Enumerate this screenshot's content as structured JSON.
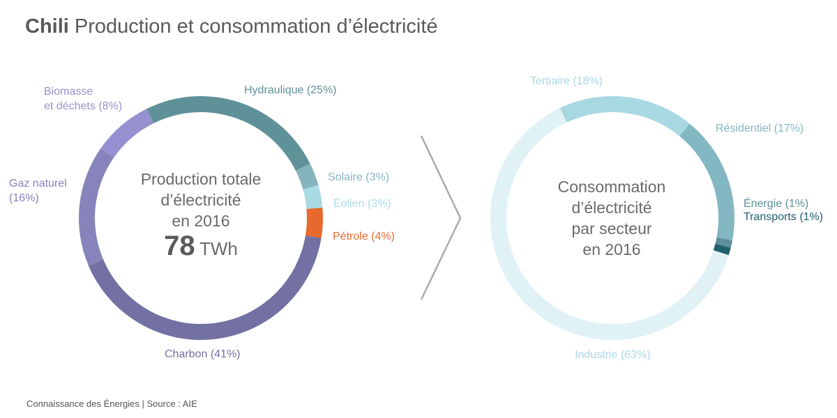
{
  "title": {
    "country": "Chili",
    "subtitle": "Production et consommation d’électricité"
  },
  "footer": "Connaissance des Énergies | Source : AIE",
  "center_production": {
    "l1": "Production totale",
    "l2": "d’électricité",
    "l3": "en 2016",
    "value": "78",
    "unit": "TWh"
  },
  "center_consumption": {
    "l1": "Consommation",
    "l2": "d’électricité",
    "l3": "par secteur",
    "l4": "en 2016"
  },
  "labels": {
    "hydro": "Hydraulique (25%)",
    "solaire": "Solaire (3%)",
    "eolien": "Éolien (3%)",
    "petrole": "Pétrole (4%)",
    "charbon": "Charbon (41%)",
    "gaz_1": "Gaz naturel",
    "gaz_2": "(16%)",
    "bio_1": "Biomasse",
    "bio_2": "et déchets (8%)",
    "tertiaire": "Tertiaire (18%)",
    "residentiel": "Résidentiel (17%)",
    "energie": "Énergie (1%)",
    "transports": "Transports (1%)",
    "industrie": "Industrie (63%)"
  },
  "chart_data": [
    {
      "type": "pie",
      "title": "Production totale d’électricité en 2016",
      "total": "78 TWh",
      "slices": [
        {
          "name": "Hydraulique",
          "value": 25,
          "color": "#5f9198"
        },
        {
          "name": "Solaire",
          "value": 3,
          "color": "#86b4bd"
        },
        {
          "name": "Éolien",
          "value": 3,
          "color": "#a8dbe4"
        },
        {
          "name": "Pétrole",
          "value": 4,
          "color": "#e8692e"
        },
        {
          "name": "Charbon",
          "value": 41,
          "color": "#7371a3"
        },
        {
          "name": "Gaz naturel",
          "value": 16,
          "color": "#8684bb"
        },
        {
          "name": "Biomasse et déchets",
          "value": 8,
          "color": "#9590cf"
        }
      ]
    },
    {
      "type": "pie",
      "title": "Consommation d’électricité par secteur en 2016",
      "slices": [
        {
          "name": "Tertiaire",
          "value": 18,
          "color": "#a8d8e1"
        },
        {
          "name": "Résidentiel",
          "value": 17,
          "color": "#83b7c2"
        },
        {
          "name": "Énergie",
          "value": 1,
          "color": "#5c8f99"
        },
        {
          "name": "Transports",
          "value": 1,
          "color": "#1f5f6c"
        },
        {
          "name": "Industrie",
          "value": 63,
          "color": "#e0f2f6"
        }
      ]
    }
  ]
}
